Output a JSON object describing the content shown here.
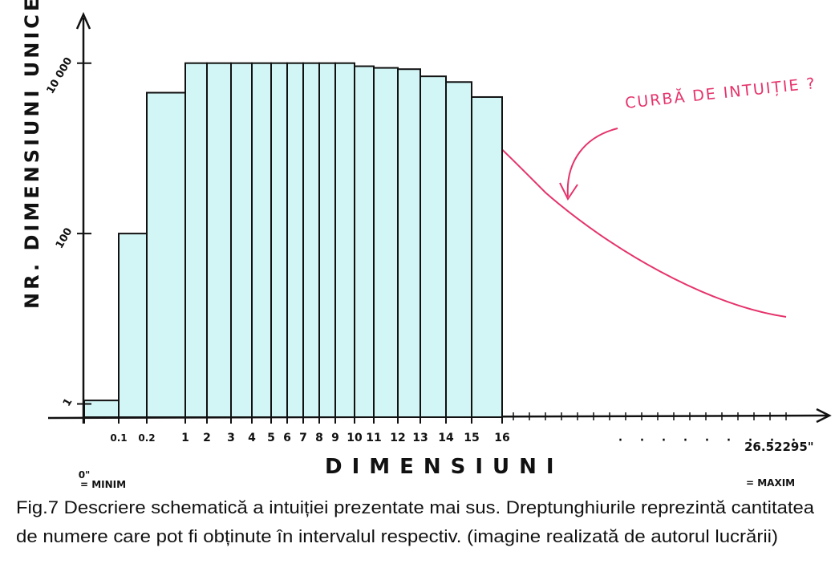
{
  "chart_data": {
    "type": "histogram",
    "y_label": "NR. DIMENSIUNI UNICE",
    "x_label": "DIMENSIUNI",
    "bins": [
      {
        "value": 0,
        "label": "0\""
      },
      0.1,
      0.2,
      1,
      2,
      3,
      4,
      5,
      6,
      7,
      8,
      9,
      10,
      11,
      12,
      13,
      14,
      15,
      16
    ],
    "values": [
      1.1,
      100,
      4500,
      10000,
      10000,
      10000,
      10000,
      10000,
      10000,
      10000,
      10000,
      10000,
      9200,
      8800,
      8500,
      7000,
      6000,
      4000
    ],
    "color": "#d2f5f5",
    "y_log": true,
    "ylim": [
      0.7,
      15000
    ],
    "yticks": [
      1,
      100,
      {
        "value": 10000,
        "label": "10 000"
      }
    ],
    "x_min_note": "= MINIM",
    "x_max_label": "26.52295\"",
    "x_max_note": "= MAXIM",
    "curve_annotation": "CURBĂ DE INTUIȚIE ?",
    "caption": [
      "Fig.7 Descriere schematică a intuiției prezentate mai sus. Dreptunghiurile reprezintă cantitatea",
      "de numere care pot fi obținute în intervalul respectiv. (imagine realizată de autorul lucrării)"
    ]
  }
}
